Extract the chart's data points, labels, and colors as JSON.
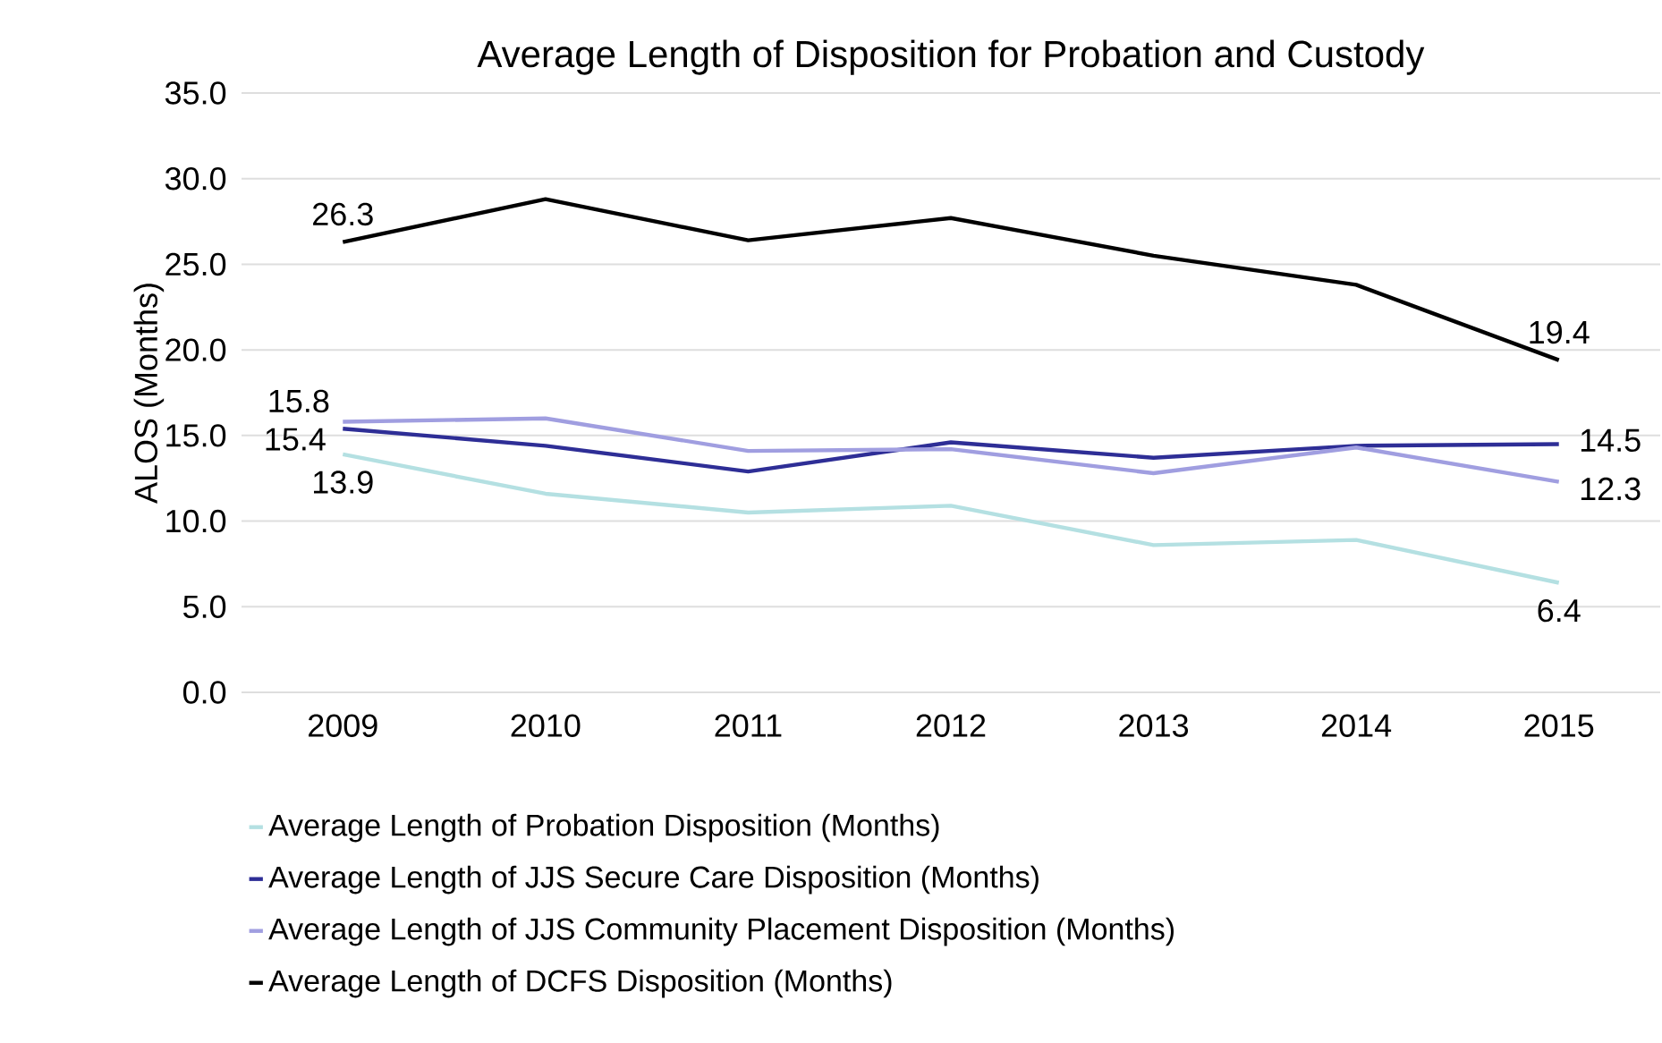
{
  "chart_data": {
    "type": "line",
    "title": "Average Length of Disposition for Probation and Custody",
    "ylabel": "ALOS (Months)",
    "categories": [
      "2009",
      "2010",
      "2011",
      "2012",
      "2013",
      "2014",
      "2015"
    ],
    "series": [
      {
        "name": "Average Length of Probation Disposition (Months)",
        "color": "#b4e0e2",
        "values": [
          13.9,
          11.6,
          10.5,
          10.9,
          8.6,
          8.9,
          6.4
        ],
        "value_labels": [
          "13.9",
          null,
          null,
          null,
          null,
          null,
          "6.4"
        ]
      },
      {
        "name": "Average Length of JJS Secure Care Disposition (Months)",
        "color": "#2e2e96",
        "values": [
          15.4,
          14.4,
          12.9,
          14.6,
          13.7,
          14.4,
          14.5
        ],
        "value_labels": [
          "15.4",
          null,
          null,
          null,
          null,
          null,
          "14.5"
        ]
      },
      {
        "name": "Average Length of JJS Community Placement Disposition (Months)",
        "color": "#a09ee0",
        "values": [
          15.8,
          16.0,
          14.1,
          14.2,
          12.8,
          14.3,
          12.3
        ],
        "value_labels": [
          "15.8",
          null,
          null,
          null,
          null,
          null,
          "12.3"
        ]
      },
      {
        "name": "Average Length of DCFS Disposition (Months)",
        "color": "#000000",
        "values": [
          26.3,
          28.8,
          26.4,
          27.7,
          25.5,
          23.8,
          19.4
        ],
        "value_labels": [
          "26.3",
          null,
          null,
          null,
          null,
          null,
          "19.4"
        ]
      }
    ],
    "ylim": [
      0,
      35
    ],
    "yticks": [
      {
        "value": 0,
        "label": "0.0"
      },
      {
        "value": 5,
        "label": "5.0"
      },
      {
        "value": 10,
        "label": "10.0"
      },
      {
        "value": 15,
        "label": "15.0"
      },
      {
        "value": 20,
        "label": "20.0"
      },
      {
        "value": 25,
        "label": "25.0"
      },
      {
        "value": 30,
        "label": "30.0"
      },
      {
        "value": 35,
        "label": "35.0"
      }
    ],
    "grid": "y",
    "legend": "bottom",
    "marker": "none",
    "line_style": "solid"
  }
}
